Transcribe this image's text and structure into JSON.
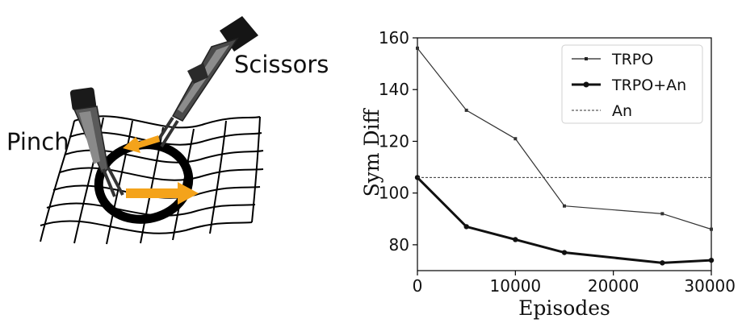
{
  "illustration": {
    "tool_labels": {
      "pinch": "Pinch",
      "scissors": "Scissors"
    },
    "accent_color": "#f4a31b"
  },
  "chart_data": {
    "type": "line",
    "xlabel": "Episodes",
    "ylabel": "Sym Diff",
    "xlim": [
      0,
      30000
    ],
    "ylim": [
      70,
      160
    ],
    "xticks": [
      0,
      10000,
      20000,
      30000
    ],
    "yticks": [
      80,
      100,
      120,
      140,
      160
    ],
    "grid": false,
    "legend_position": "top-right",
    "series": [
      {
        "name": "TRPO",
        "style": "thin-solid-square-markers",
        "x": [
          0,
          5000,
          10000,
          15000,
          25000,
          30000
        ],
        "y": [
          156,
          132,
          121,
          95,
          92,
          86
        ]
      },
      {
        "name": "TRPO+An",
        "style": "thick-solid-round-markers",
        "x": [
          0,
          5000,
          10000,
          15000,
          25000,
          30000
        ],
        "y": [
          106,
          87,
          82,
          77,
          73,
          74
        ]
      },
      {
        "name": "An",
        "style": "dashed-horizontal",
        "x": [
          0,
          30000
        ],
        "y": [
          106,
          106
        ]
      }
    ]
  }
}
